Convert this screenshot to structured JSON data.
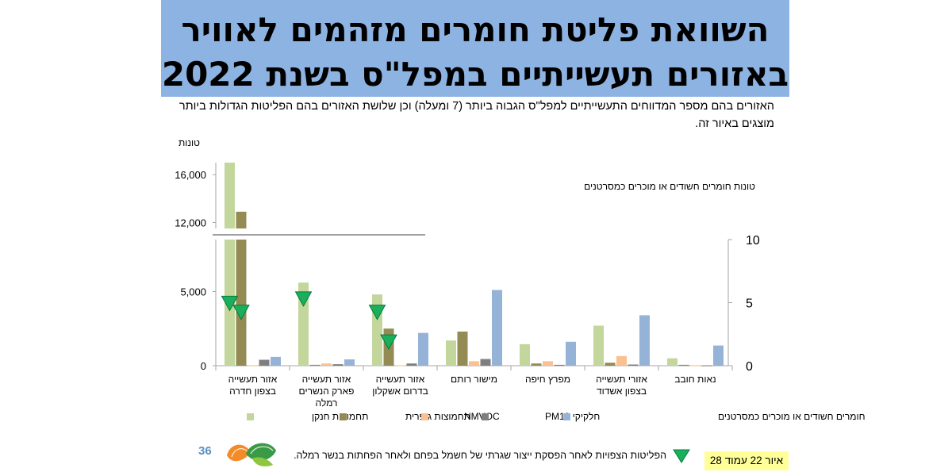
{
  "title_lines": [
    "השוואת פליטת חומרים מזהמים לאוויר",
    "באזורים תעשייתיים במפל\"ס בשנת 2022"
  ],
  "subtitle": "האזורים בהם מספר המדווחים התעשייתיים למפל\"ס הגבוה ביותר (7 ומעלה) וכן שלושת האזורים בהם הפליטות הגדולות ביותר מוצגים באיור זה.",
  "page_number": "36",
  "footnote": "הפליטות הצפויות לאחר הפסקת ייצור שגרתי של חשמל בפחם ולאחר הפחתות בנשר רמלה.",
  "figure_ref": "איור 22 עמוד 28",
  "colors": {
    "title_bg": "#8db3e2",
    "nox": "#c3d69b",
    "sox": "#948a54",
    "nmvoc": "#fac090",
    "pm10": "#7f7f7f",
    "carc": "#95b3d7",
    "marker": "#1aaf5d"
  },
  "chart_data": {
    "type": "bar",
    "left_axis_unit": "טונות",
    "right_axis_series_label": "טונות חומרים חשודים או מוכרים כמסרטנים",
    "left_axis_lower_ticks": [
      "0",
      "5,000"
    ],
    "left_axis_upper_ticks": [
      "12,000",
      "16,000"
    ],
    "right_axis_ticks": [
      "0",
      "5",
      "10"
    ],
    "left_axis_lower_range": [
      0,
      8500
    ],
    "left_axis_upper_range": [
      11500,
      17000
    ],
    "right_axis_range": [
      0,
      10
    ],
    "categories": [
      "אזור תעשייה בצפון חדרה",
      "אזור תעשייה פארק הנשרים רמלה",
      "אזור תעשייה בדרום אשקלון",
      "מישור רותם",
      "מפרץ חיפה",
      "אזורי תעשייה בצפון אשדוד",
      "נאות חובב"
    ],
    "series": [
      {
        "name": "תחמוצות חנקן",
        "key": "nox",
        "axis": "left",
        "values": [
          17000,
          5600,
          4800,
          1700,
          1450,
          2700,
          500
        ]
      },
      {
        "name": "תחמוצות גופרית",
        "key": "sox",
        "axis": "left",
        "values": [
          12900,
          60,
          2500,
          2300,
          150,
          200,
          60
        ]
      },
      {
        "name": "NMVOC",
        "key": "nmvoc",
        "axis": "left",
        "values": [
          20,
          150,
          30,
          300,
          300,
          650,
          20
        ]
      },
      {
        "name": "חלקיקי PM10",
        "key": "pm10",
        "axis": "left",
        "values": [
          400,
          100,
          150,
          450,
          60,
          80,
          20
        ]
      },
      {
        "name": "חומרים חשודים או מוכרים כמסרטנים",
        "key": "carc",
        "axis": "right",
        "values": [
          0.7,
          0.5,
          2.6,
          6.0,
          1.9,
          4.0,
          1.6
        ]
      }
    ],
    "expected_markers": [
      {
        "category": 0,
        "series": "nox",
        "value": 4200
      },
      {
        "category": 0,
        "series": "sox",
        "value": 3600
      },
      {
        "category": 1,
        "series": "nox",
        "value": 4500
      },
      {
        "category": 2,
        "series": "nox",
        "value": 3600
      },
      {
        "category": 2,
        "series": "sox",
        "value": 1600
      }
    ],
    "legend_position": "bottom",
    "grid": false
  }
}
